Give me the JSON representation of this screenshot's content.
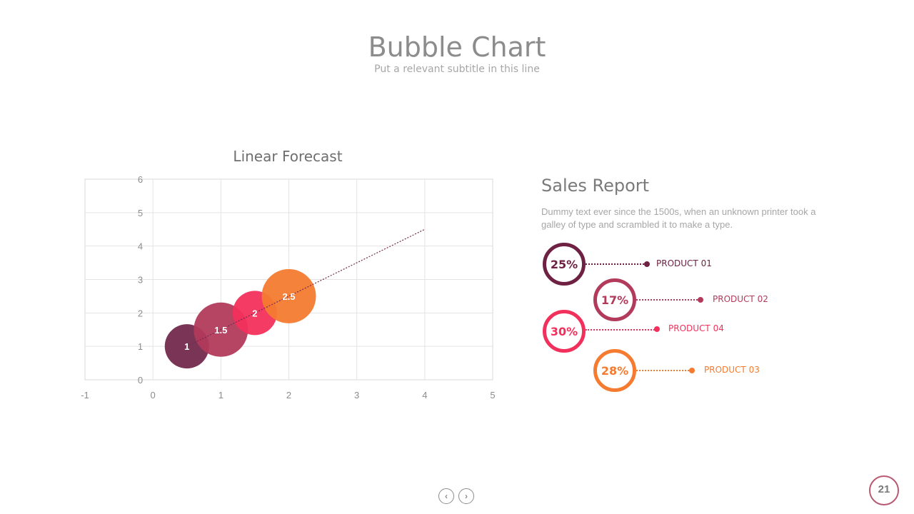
{
  "header": {
    "title": "Bubble Chart",
    "subtitle": "Put a relevant subtitle in this line"
  },
  "chart_data": {
    "type": "scatter",
    "title": "Linear Forecast",
    "xlim": [
      -1,
      5
    ],
    "ylim": [
      0,
      6
    ],
    "x_ticks": [
      "-1",
      "0",
      "1",
      "2",
      "3",
      "4",
      "5"
    ],
    "y_ticks": [
      "0",
      "1",
      "2",
      "3",
      "4",
      "5",
      "6"
    ],
    "grid": true,
    "series": [
      {
        "x": 0.5,
        "y": 1,
        "size": 1,
        "label": "1",
        "color": "#732a4d"
      },
      {
        "x": 1,
        "y": 1.5,
        "size": 1.5,
        "label": "1.5",
        "color": "#b23a5b"
      },
      {
        "x": 1.5,
        "y": 2,
        "size": 1,
        "label": "2",
        "color": "#f2305c"
      },
      {
        "x": 2,
        "y": 2.5,
        "size": 1.5,
        "label": "2.5",
        "color": "#f47b2f"
      }
    ],
    "trendline": {
      "type": "linear",
      "from": [
        0.5,
        1
      ],
      "to": [
        4,
        4.5
      ],
      "color": "#732a4d"
    }
  },
  "report": {
    "title": "Sales Report",
    "text": "Dummy text ever since the 1500s, when an unknown printer took a galley of type and scrambled it to make a type.",
    "products": [
      {
        "percent": "25%",
        "label": "PRODUCT 01",
        "color": "#6e2143"
      },
      {
        "percent": "17%",
        "label": "PRODUCT 02",
        "color": "#b23a5b"
      },
      {
        "percent": "30%",
        "label": "PRODUCT 04",
        "color": "#f2305c"
      },
      {
        "percent": "28%",
        "label": "PRODUCT 03",
        "color": "#f47b2f"
      }
    ]
  },
  "nav": {
    "prev": "‹",
    "next": "›"
  },
  "page": {
    "number": "21"
  }
}
